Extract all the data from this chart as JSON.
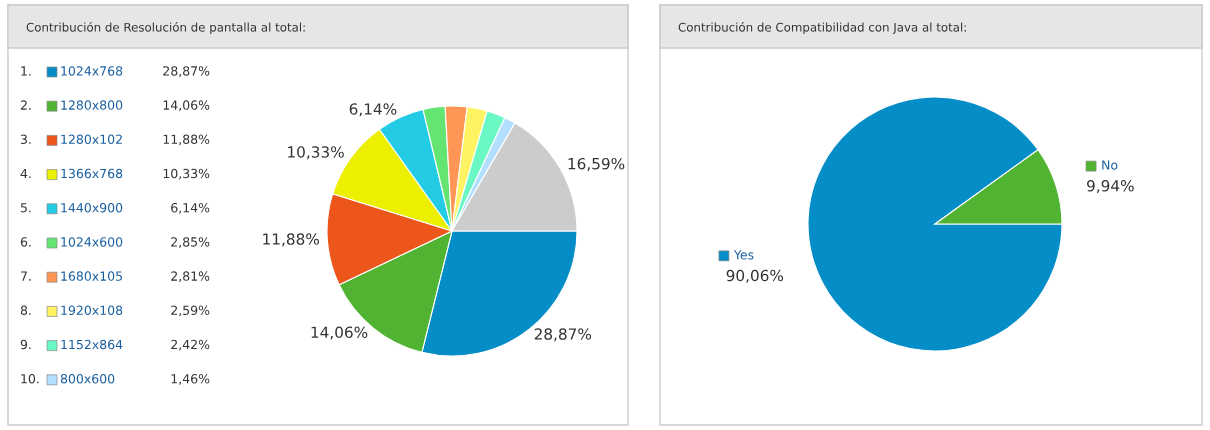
{
  "chart_data": [
    {
      "type": "pie",
      "title": "Contribución de Resolución de pantalla al total:",
      "legend": "left",
      "annotations": [
        "1.",
        "2.",
        "3.",
        "4.",
        "5.",
        "6.",
        "7.",
        "8.",
        "9.",
        "10."
      ],
      "categories": [
        "1024x768",
        "1280x800",
        "1280x102",
        "1366x768",
        "1440x900",
        "1024x600",
        "1680x105",
        "1920x108",
        "1152x864",
        "800x600",
        null
      ],
      "values": [
        28.87,
        14.06,
        11.88,
        10.33,
        6.14,
        2.85,
        2.81,
        2.59,
        2.42,
        1.46,
        16.59
      ],
      "colors": [
        "#058dc7",
        "#50b432",
        "#ed561b",
        "#edef00",
        "#24cbe5",
        "#64e572",
        "#ff9655",
        "#fff263",
        "#6af9c4",
        "#b2deff",
        "#cccccc"
      ],
      "value_labels": [
        "28,87%",
        "14,06%",
        "11,88%",
        "10,33%",
        "6,14%",
        "2,85%",
        "2,81%",
        "2,59%",
        "2,42%",
        "1,46%",
        "16,59%"
      ]
    },
    {
      "type": "pie",
      "title": "Contribución de Compatibilidad con Java al total:",
      "legend": "top left",
      "categories": [
        "Yes",
        "No"
      ],
      "values": [
        90.06,
        9.94
      ],
      "colors": [
        "#058dc7",
        "#50b432"
      ],
      "value_labels": [
        "90,06%",
        "9,94%"
      ]
    }
  ]
}
